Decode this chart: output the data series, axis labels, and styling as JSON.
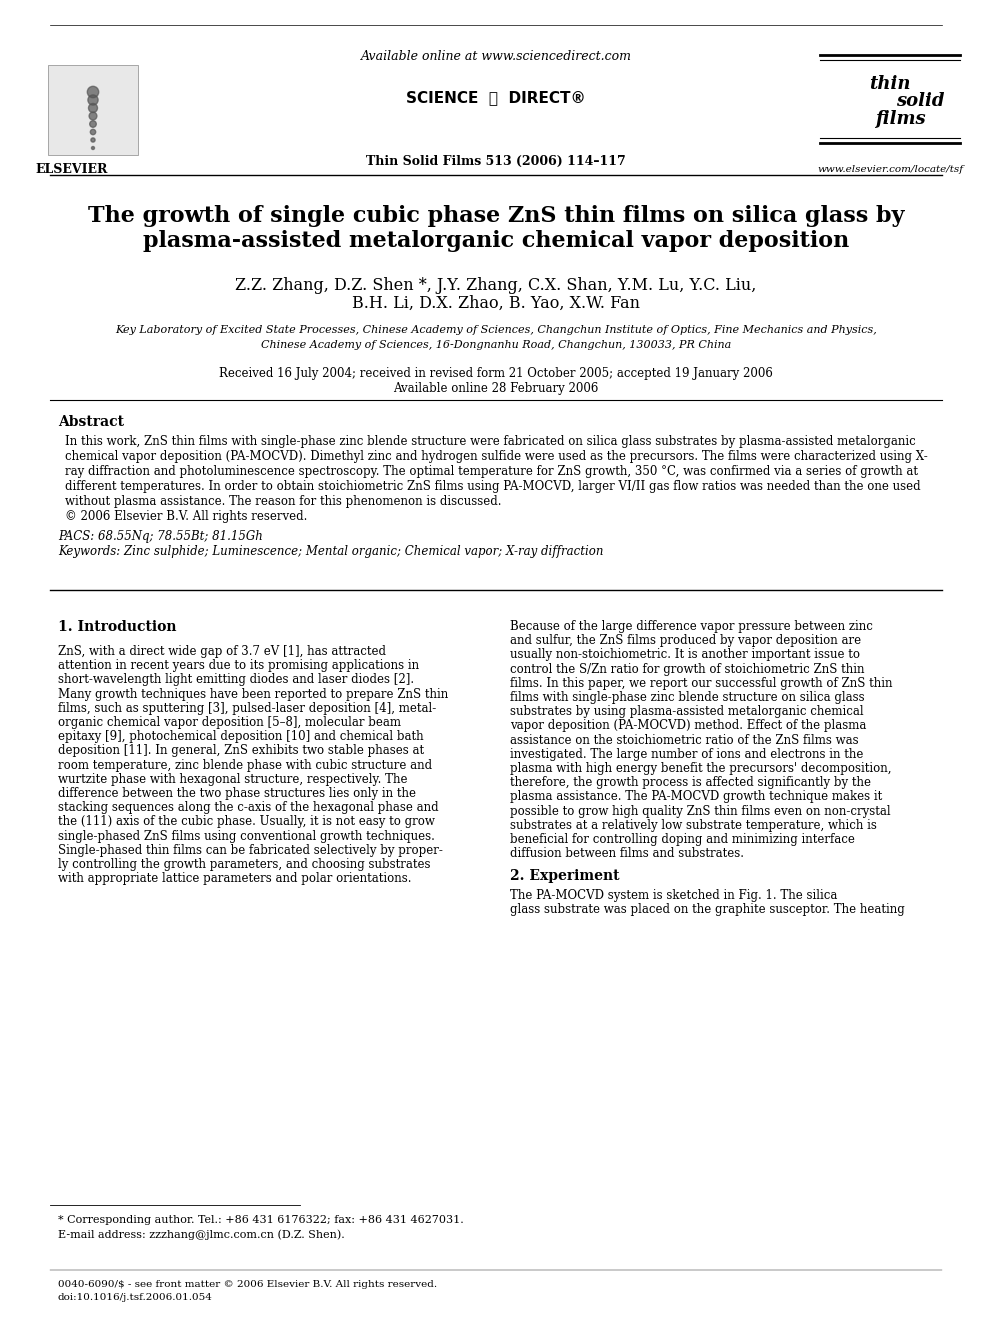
{
  "title_line1": "The growth of single cubic phase ZnS thin films on silica glass by",
  "title_line2": "plasma-assisted metalorganic chemical vapor deposition",
  "authors_line1": "Z.Z. Zhang, D.Z. Shen *, J.Y. Zhang, C.X. Shan, Y.M. Lu, Y.C. Liu,",
  "authors_line2": "B.H. Li, D.X. Zhao, B. Yao, X.W. Fan",
  "affil1": "Key Laboratory of Excited State Processes, Chinese Academy of Sciences, Changchun Institute of Optics, Fine Mechanics and Physics,",
  "affil2": "Chinese Academy of Sciences, 16-Dongnanhu Road, Changchun, 130033, PR China",
  "received": "Received 16 July 2004; received in revised form 21 October 2005; accepted 19 January 2006",
  "available": "Available online 28 February 2006",
  "header_center_top": "Available online at www.sciencedirect.com",
  "journal_line": "Thin Solid Films 513 (2006) 114–117",
  "elsevier_text": "ELSEVIER",
  "website": "www.elsevier.com/locate/tsf",
  "abstract_title": "Abstract",
  "abstract_text": "In this work, ZnS thin films with single-phase zinc blende structure were fabricated on silica glass substrates by plasma-assisted metalorganic chemical vapor deposition (PA-MOCVD). Dimethyl zinc and hydrogen sulfide were used as the precursors. The films were characterized using X-ray diffraction and photoluminescence spectroscopy. The optimal temperature for ZnS growth, 350 °C, was confirmed via a series of growth at different temperatures. In order to obtain stoichiometric ZnS films using PA-MOCVD, larger VI/II gas flow ratios was needed than the one used without plasma assistance. The reason for this phenomenon is discussed.\n© 2006 Elsevier B.V. All rights reserved.",
  "pacs": "PACS: 68.55Nq; 78.55Bt; 81.15Gh",
  "keywords": "Keywords: Zinc sulphide; Luminescence; Mental organic; Chemical vapor; X-ray diffraction",
  "section1_title": "1. Introduction",
  "section1_col1": "ZnS, with a direct wide gap of 3.7 eV [1], has attracted attention in recent years due to its promising applications in short-wavelength light emitting diodes and laser diodes [2]. Many growth techniques have been reported to prepare ZnS thin films, such as sputtering [3], pulsed-laser deposition [4], metal-organic chemical vapor deposition [5–8], molecular beam epitaxy [9], photochemical deposition [10] and chemical bath deposition [11]. In general, ZnS exhibits two stable phases at room temperature, zinc blende phase with cubic structure and wurtzite phase with hexagonal structure, respectively. The difference between the two phase structures lies only in the stacking sequences along the c-axis of the hexagonal phase and the (111) axis of the cubic phase. Usually, it is not easy to grow single-phased ZnS films using conventional growth techniques. Single-phased thin films can be fabricated selectively by properly controlling the growth parameters, and choosing substrates with appropriate lattice parameters and polar orientations.",
  "section1_col2": "Because of the large difference vapor pressure between zinc and sulfur, the ZnS films produced by vapor deposition are usually non-stoichiometric. It is another important issue to control the S/Zn ratio for growth of stoichiometric ZnS thin films. In this paper, we report our successful growth of ZnS thin films with single-phase zinc blende structure on silica glass substrates by using plasma-assisted metalorganic chemical vapor deposition (PA-MOCVD) method. Effect of the plasma assistance on the stoichiometric ratio of the ZnS films was investigated. The large number of ions and electrons in the plasma with high energy benefit the precursors' decomposition, therefore, the growth process is affected significantly by the plasma assistance. The PA-MOCVD growth technique makes it possible to grow high quality ZnS thin films even on non-crystal substrates at a relatively low substrate temperature, which is beneficial for controlling doping and minimizing interface diffusion between films and substrates.",
  "section2_title": "2. Experiment",
  "section2_text": "The PA-MOCVD system is sketched in Fig. 1. The silica glass substrate was placed on the graphite susceptor. The heating",
  "footnote_corresponding": "* Corresponding author. Tel.: +86 431 6176322; fax: +86 431 4627031.",
  "footnote_email": "E-mail address: zzzhang@jlmc.com.cn (D.Z. Shen).",
  "footer_line1": "0040-6090/$ - see front matter © 2006 Elsevier B.V. All rights reserved.",
  "footer_line2": "doi:10.1016/j.tsf.2006.01.054",
  "bg_color": "#ffffff",
  "text_color": "#000000"
}
